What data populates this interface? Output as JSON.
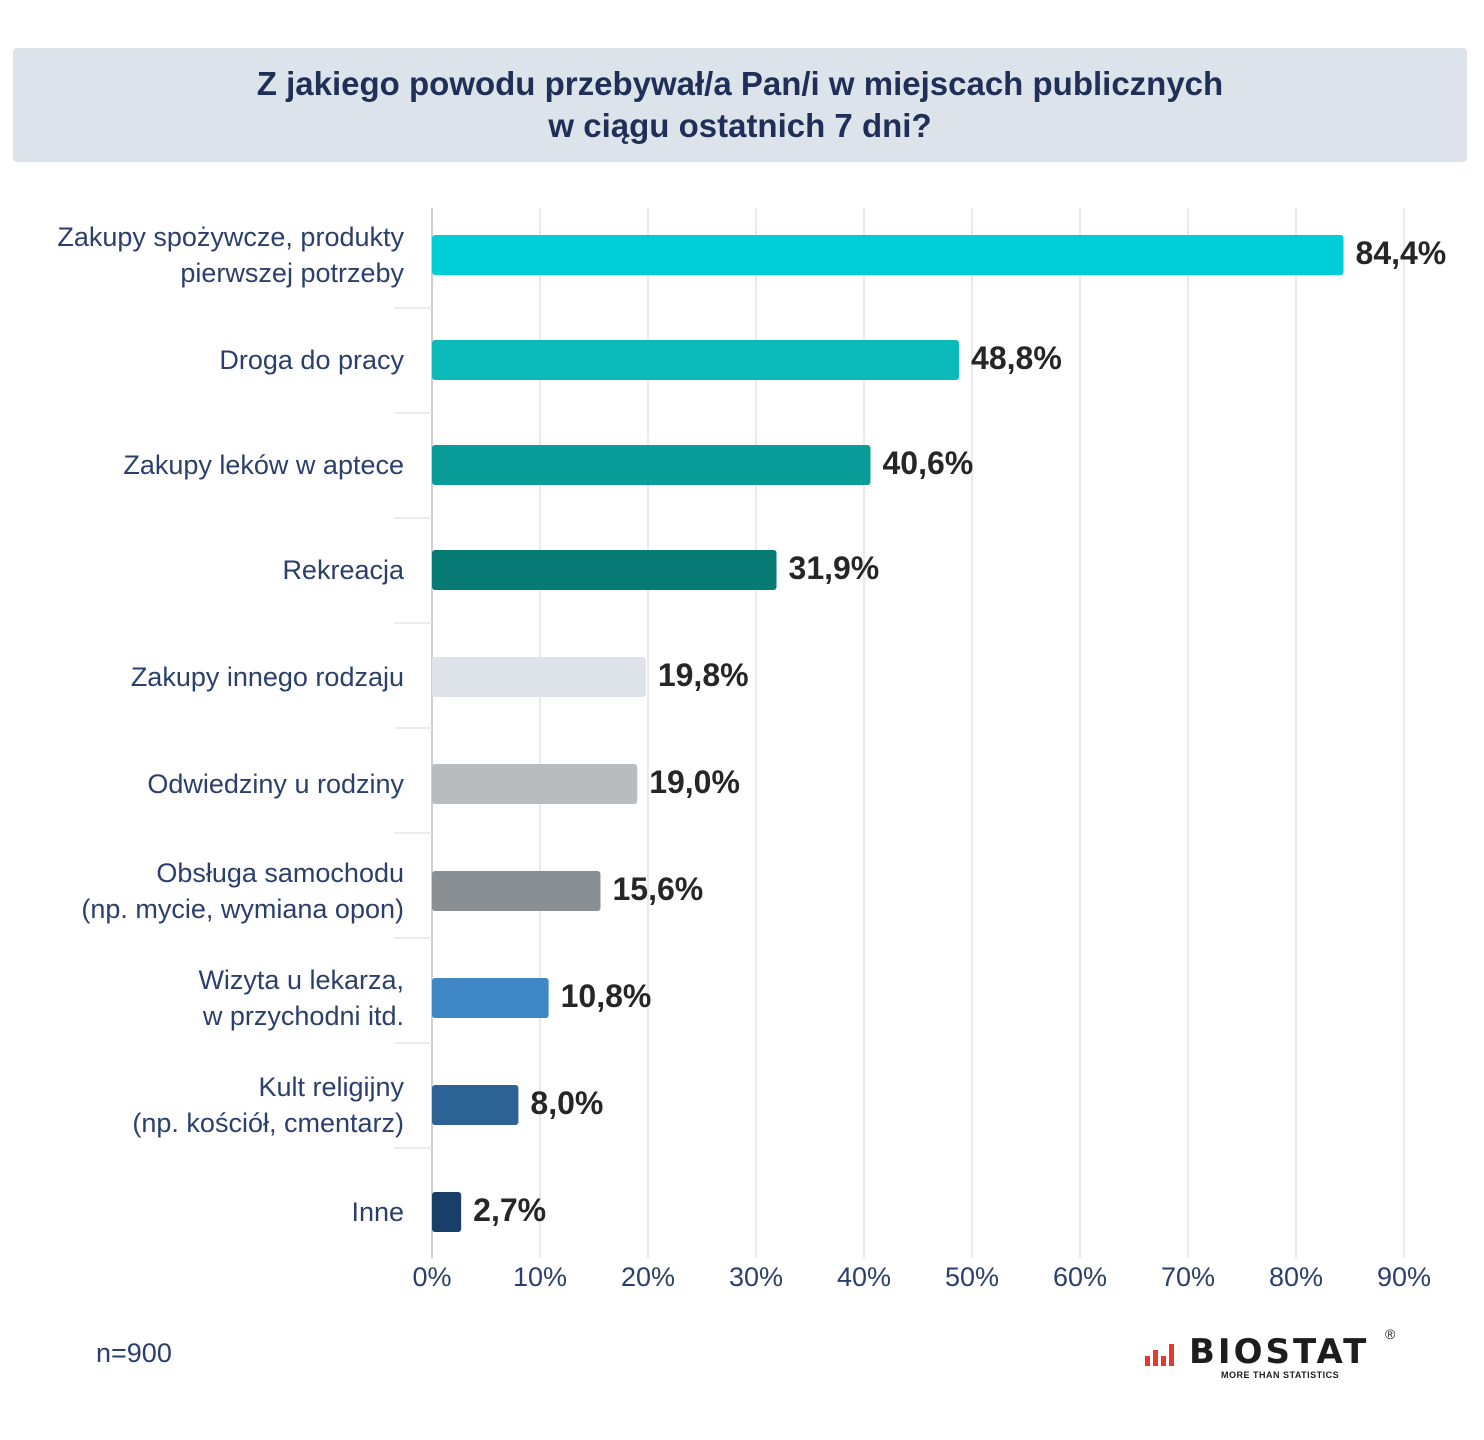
{
  "header": {
    "title_line1": "Z jakiego powodu przebywał/a Pan/i w miejscach publicznych",
    "title_line2": "w ciągu ostatnich 7 dni?"
  },
  "footer": {
    "sample_size": "n=900"
  },
  "logo": {
    "name": "BIOSTAT",
    "tagline": "MORE THAN STATISTICS",
    "registered": "®",
    "icon": "bar-chart-logo-icon"
  },
  "colors": {
    "title_bg": "#dde3ea",
    "title_text": "#1f2f57",
    "label_text": "#2a3f6b",
    "value_text": "#262626",
    "grid": "#e3e3e3",
    "logo_red": "#e53a2f"
  },
  "chart_data": {
    "type": "bar",
    "orientation": "horizontal",
    "title": "Z jakiego powodu przebywał/a Pan/i w miejscach publicznych w ciągu ostatnich 7 dni?",
    "xlabel": "",
    "ylabel": "",
    "xlim": [
      0,
      90
    ],
    "grid": true,
    "ticks": [
      "0%",
      "10%",
      "20%",
      "30%",
      "40%",
      "50%",
      "60%",
      "70%",
      "80%",
      "90%"
    ],
    "categories": [
      {
        "lines": [
          "Zakupy spożywcze, produkty",
          "pierwszej potrzeby"
        ],
        "value": 84.4,
        "label": "84,4%",
        "color": "#00cdd8"
      },
      {
        "lines": [
          "Droga do pracy"
        ],
        "value": 48.8,
        "label": "48,8%",
        "color": "#0bbab9"
      },
      {
        "lines": [
          "Zakupy leków w aptece"
        ],
        "value": 40.6,
        "label": "40,6%",
        "color": "#0a9c99"
      },
      {
        "lines": [
          "Rekreacja"
        ],
        "value": 31.9,
        "label": "31,9%",
        "color": "#087a76"
      },
      {
        "lines": [
          "Zakupy innego rodzaju"
        ],
        "value": 19.8,
        "label": "19,8%",
        "color": "#dde3e9"
      },
      {
        "lines": [
          "Odwiedziny u rodziny"
        ],
        "value": 19.0,
        "label": "19,0%",
        "color": "#b8bcbf"
      },
      {
        "lines": [
          "Obsługa samochodu",
          "(np. mycie, wymiana opon)"
        ],
        "value": 15.6,
        "label": "15,6%",
        "color": "#8a8f93"
      },
      {
        "lines": [
          "Wizyta u lekarza,",
          "w przychodni itd."
        ],
        "value": 10.8,
        "label": "10,8%",
        "color": "#3f88c5"
      },
      {
        "lines": [
          "Kult religijny",
          "(np. kościół, cmentarz)"
        ],
        "value": 8.0,
        "label": "8,0%",
        "color": "#2d6394"
      },
      {
        "lines": [
          "Inne"
        ],
        "value": 2.7,
        "label": "2,7%",
        "color": "#173f67"
      }
    ]
  }
}
